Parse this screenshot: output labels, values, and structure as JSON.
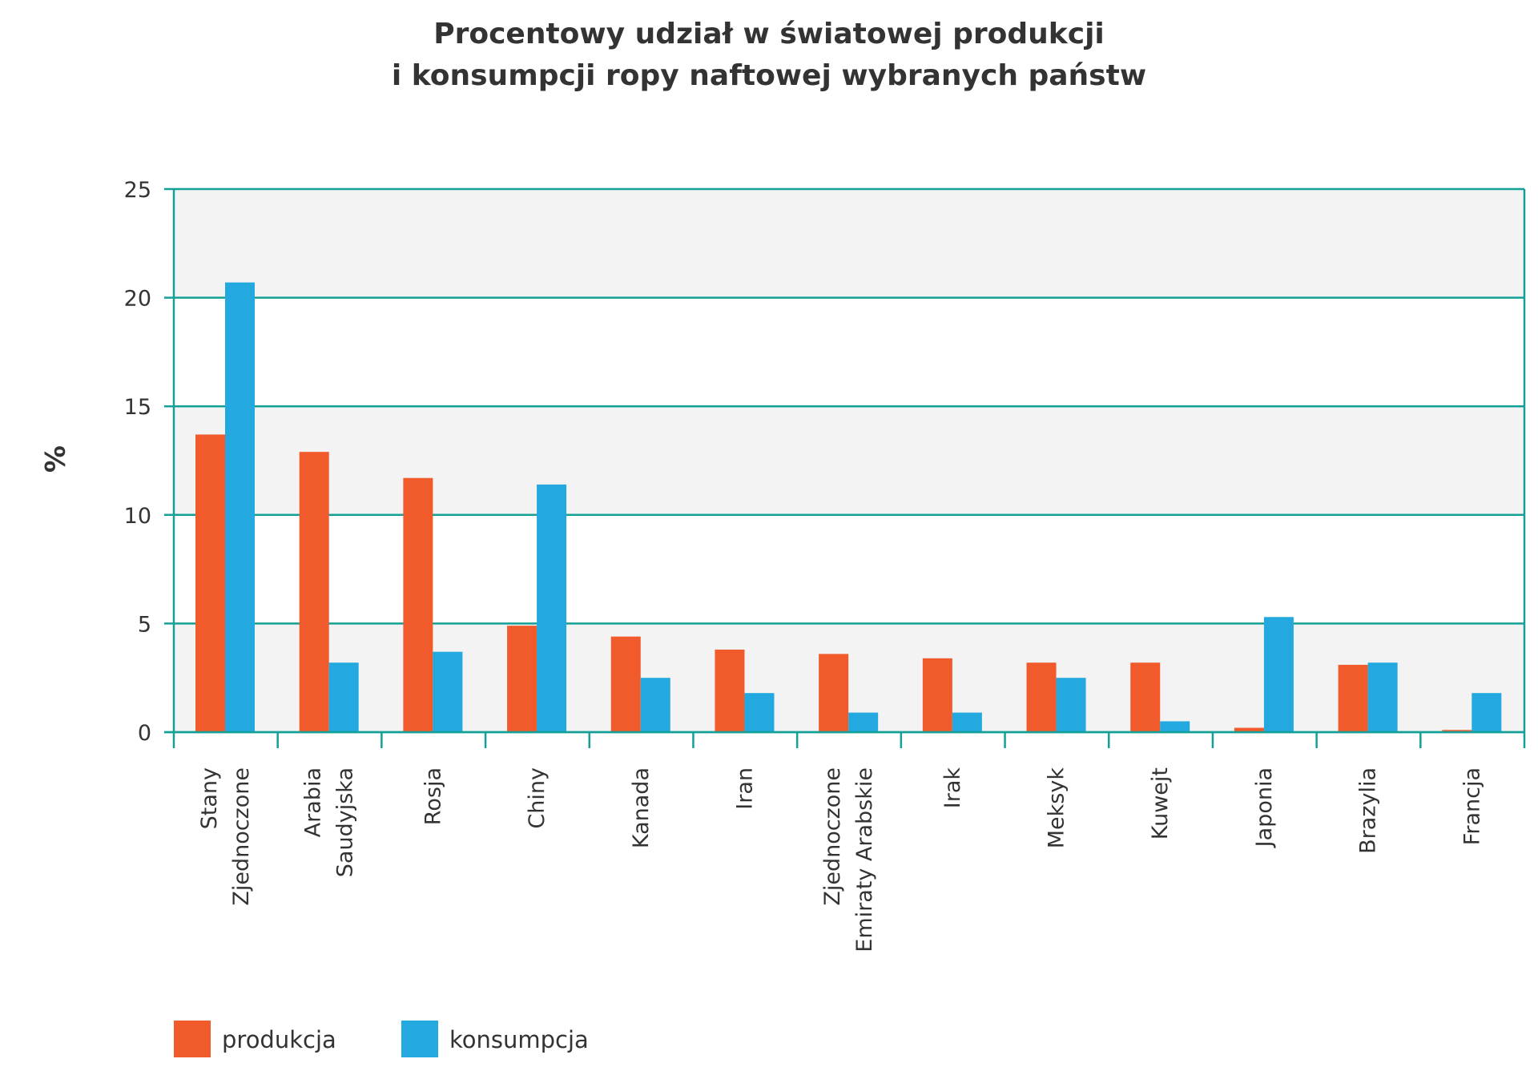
{
  "chart_data": {
    "type": "bar",
    "title": [
      "Procentowy udział w światowej produkcji",
      "i konsumpcji ropy naftowej wybranych państw"
    ],
    "ylabel": "%",
    "xlabel": "",
    "ylim": [
      0,
      25
    ],
    "yticks": [
      0,
      5,
      10,
      15,
      20,
      25
    ],
    "grid": true,
    "legend_position": "bottom-left",
    "categories": [
      [
        "Stany",
        "Zjednoczone"
      ],
      [
        "Arabia",
        "Saudyjska"
      ],
      [
        "Rosja"
      ],
      [
        "Chiny"
      ],
      [
        "Kanada"
      ],
      [
        "Iran"
      ],
      [
        "Zjednoczone",
        "Emiraty Arabskie"
      ],
      [
        "Irak"
      ],
      [
        "Meksyk"
      ],
      [
        "Kuwejt"
      ],
      [
        "Japonia"
      ],
      [
        "Brazylia"
      ],
      [
        "Francja"
      ]
    ],
    "series": [
      {
        "name": "produkcja",
        "color": "#f15a2b",
        "values": [
          13.7,
          12.9,
          11.7,
          4.9,
          4.4,
          3.8,
          3.6,
          3.4,
          3.2,
          3.2,
          0.2,
          3.1,
          0.1
        ]
      },
      {
        "name": "konsumpcja",
        "color": "#23a8e0",
        "values": [
          20.7,
          3.2,
          3.7,
          11.4,
          2.5,
          1.8,
          0.9,
          0.9,
          2.5,
          0.5,
          5.3,
          3.2,
          1.8
        ]
      }
    ],
    "colors": {
      "axis": "#13a096",
      "band": "#f3f3f3"
    }
  }
}
